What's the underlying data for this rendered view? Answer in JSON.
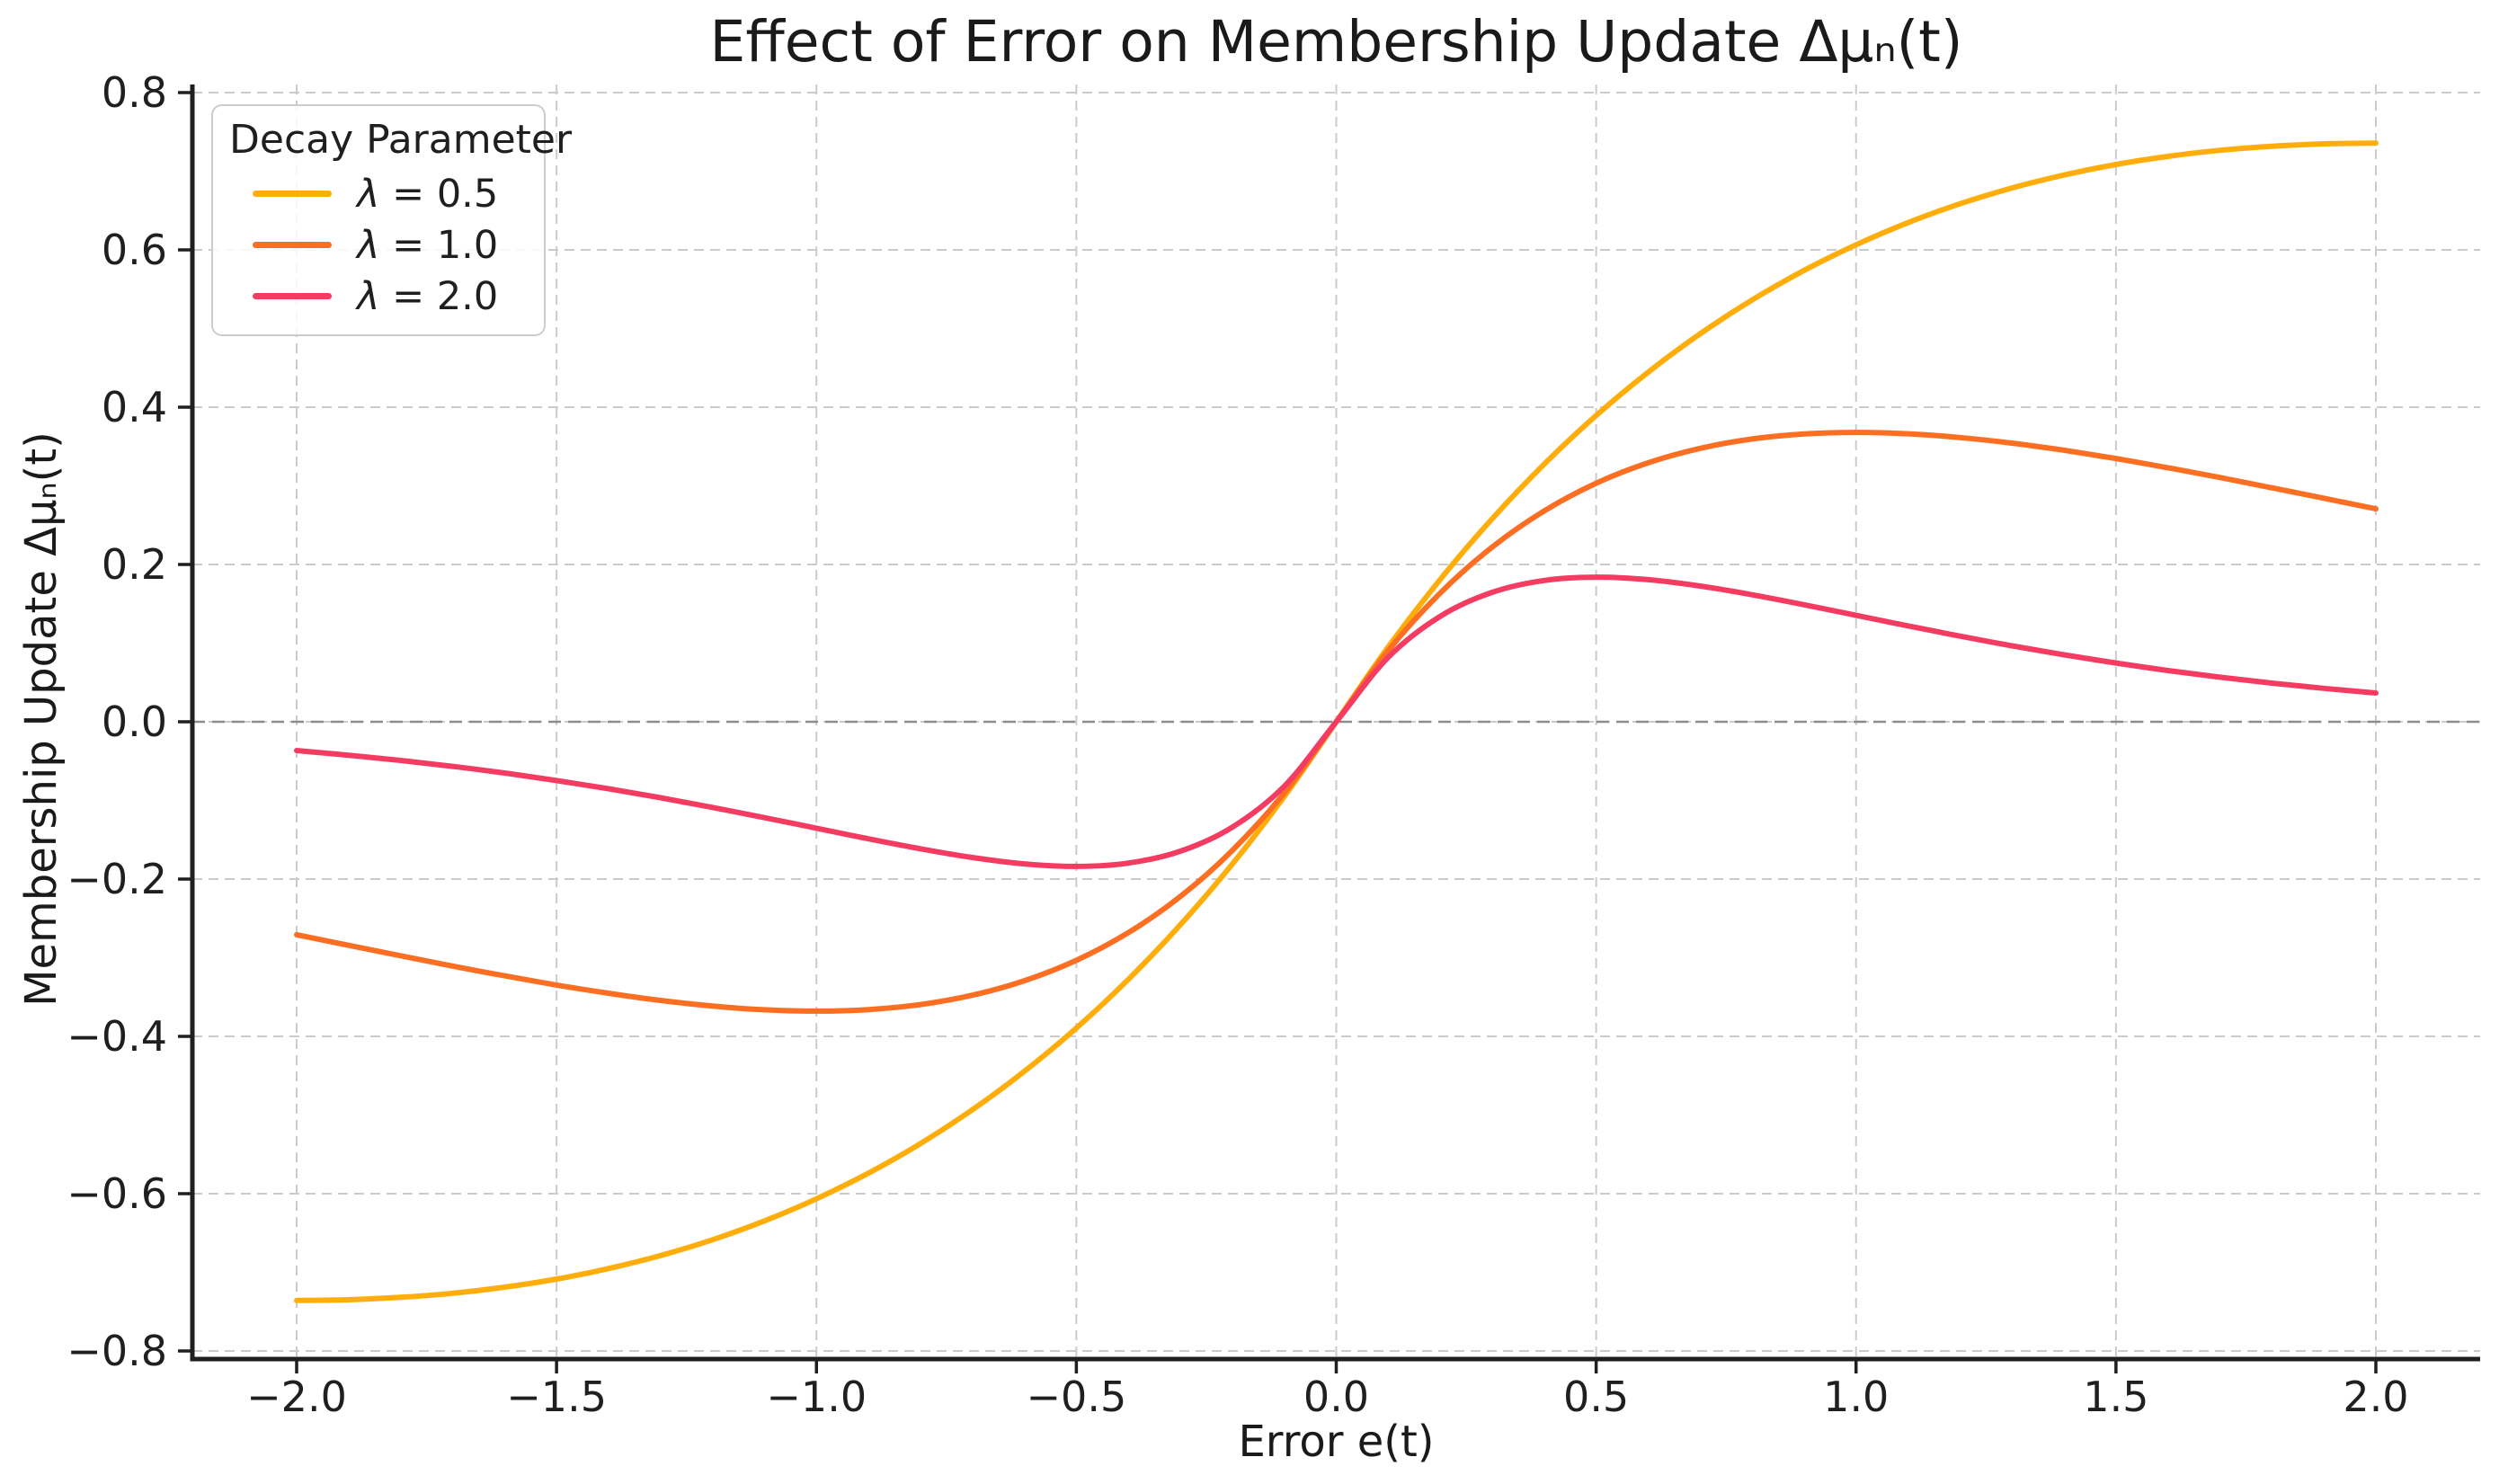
{
  "figure": {
    "background": "#ffffff"
  },
  "chart_data": {
    "type": "line",
    "title": "Effect of Error on Membership Update Δμₙ(t)",
    "xlabel": "Error e(t)",
    "ylabel": "Membership Update Δμₙ(t)",
    "xlim": [
      -2.2,
      2.2
    ],
    "ylim": [
      -0.81,
      0.81
    ],
    "x_tick_values": [
      -2.0,
      -1.5,
      -1.0,
      -0.5,
      0.0,
      0.5,
      1.0,
      1.5,
      2.0
    ],
    "x_tick_labels": [
      "−2.0",
      "−1.5",
      "−1.0",
      "−0.5",
      "0.0",
      "0.5",
      "1.0",
      "1.5",
      "2.0"
    ],
    "y_tick_values": [
      -0.8,
      -0.6,
      -0.4,
      -0.2,
      0.0,
      0.2,
      0.4,
      0.6,
      0.8
    ],
    "y_tick_labels": [
      "−0.8",
      "−0.6",
      "−0.4",
      "−0.2",
      "0.0",
      "0.2",
      "0.4",
      "0.6",
      "0.8"
    ],
    "grid": {
      "on": true,
      "style": "dashed",
      "color": "#cbcbcb"
    },
    "zero_line": {
      "y": 0.0,
      "style": "dashed",
      "color": "#8c8c8c"
    },
    "colors": {
      "axis": "#1f1f1f",
      "text": "#1a1a1a"
    },
    "legend": {
      "title": "Decay Parameter",
      "position": "upper left",
      "items": [
        {
          "symbol": "λ",
          "rest": " = 0.5",
          "label": "λ = 0.5",
          "color": "#FFAD0B"
        },
        {
          "symbol": "λ",
          "rest": " = 1.0",
          "label": "λ = 1.0",
          "color": "#FC6E22"
        },
        {
          "symbol": "λ",
          "rest": " = 2.0",
          "label": "λ = 2.0",
          "color": "#F43B62"
        }
      ]
    },
    "x": [
      -2.0,
      -1.9,
      -1.8,
      -1.7,
      -1.6,
      -1.5,
      -1.4,
      -1.3,
      -1.2,
      -1.1,
      -1.0,
      -0.9,
      -0.8,
      -0.7,
      -0.6,
      -0.5,
      -0.4,
      -0.3,
      -0.2,
      -0.1,
      0.0,
      0.1,
      0.2,
      0.3,
      0.4,
      0.5,
      0.6,
      0.7,
      0.8,
      0.9,
      1.0,
      1.1,
      1.2,
      1.3,
      1.4,
      1.5,
      1.6,
      1.7,
      1.8,
      1.9,
      2.0
    ],
    "series": [
      {
        "name": "λ = 0.5",
        "lambda": 0.5,
        "color": "#FFAD0B",
        "values": [
          -0.7358,
          -0.7348,
          -0.7318,
          -0.7266,
          -0.7189,
          -0.7086,
          -0.6952,
          -0.6787,
          -0.6586,
          -0.6346,
          -0.6065,
          -0.5739,
          -0.5363,
          -0.4933,
          -0.4445,
          -0.3894,
          -0.3275,
          -0.2582,
          -0.181,
          -0.0951,
          0.0,
          0.0951,
          0.181,
          0.2582,
          0.3275,
          0.3894,
          0.4445,
          0.4933,
          0.5363,
          0.5739,
          0.6065,
          0.6346,
          0.6586,
          0.6787,
          0.6952,
          0.7086,
          0.7189,
          0.7266,
          0.7318,
          0.7348,
          0.7358
        ]
      },
      {
        "name": "λ = 1.0",
        "lambda": 1.0,
        "color": "#FC6E22",
        "values": [
          -0.2707,
          -0.2842,
          -0.2975,
          -0.3106,
          -0.323,
          -0.3347,
          -0.3452,
          -0.3543,
          -0.3614,
          -0.3662,
          -0.3679,
          -0.3659,
          -0.3595,
          -0.3476,
          -0.3293,
          -0.3033,
          -0.2681,
          -0.2222,
          -0.1637,
          -0.0905,
          0.0,
          0.0905,
          0.1637,
          0.2222,
          0.2681,
          0.3033,
          0.3293,
          0.3476,
          0.3595,
          0.3659,
          0.3679,
          0.3662,
          0.3614,
          0.3543,
          0.3452,
          0.3347,
          0.323,
          0.3106,
          0.2975,
          0.2842,
          0.2707
        ]
      },
      {
        "name": "λ = 2.0",
        "lambda": 2.0,
        "color": "#F43B62",
        "values": [
          -0.0366,
          -0.0425,
          -0.0492,
          -0.0567,
          -0.0652,
          -0.0747,
          -0.0851,
          -0.0966,
          -0.1089,
          -0.1219,
          -0.1353,
          -0.1488,
          -0.1615,
          -0.1726,
          -0.1807,
          -0.1839,
          -0.1797,
          -0.1646,
          -0.1341,
          -0.0819,
          0.0,
          0.0819,
          0.1341,
          0.1646,
          0.1797,
          0.1839,
          0.1807,
          0.1726,
          0.1615,
          0.1488,
          0.1353,
          0.1219,
          0.1089,
          0.0966,
          0.0851,
          0.0747,
          0.0652,
          0.0567,
          0.0492,
          0.0425,
          0.0366
        ]
      }
    ]
  }
}
